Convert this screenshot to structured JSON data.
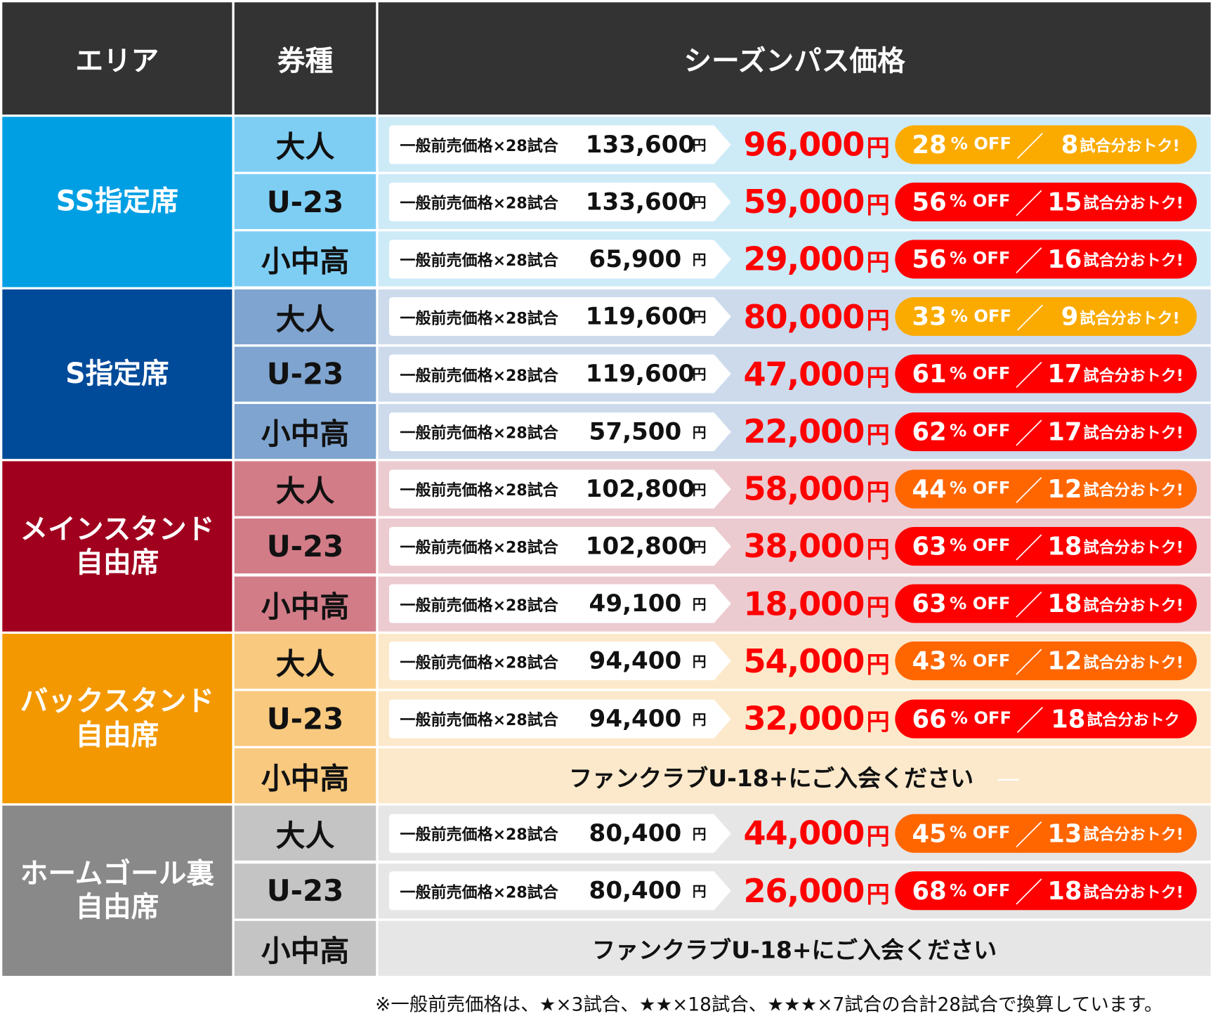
{
  "header": {
    "area": "エリア",
    "type": "券種",
    "price": "シーズンパス価格"
  },
  "labels": {
    "general": "一般前売価格×28試合",
    "yen": "円",
    "off": "% OFF",
    "slash": "／",
    "games_suffix": "試合分おトク!",
    "games_suffix_no_excl": "試合分おトク",
    "dash": "—"
  },
  "colors": {
    "yellow": "#fbab00",
    "red": "#ff0000",
    "orange": "#ff6600"
  },
  "areas": [
    {
      "name": "SS指定席",
      "color": "#009fe3",
      "type_color": "#7ecef4",
      "bg": "#cdeaf7",
      "rows": [
        {
          "type": "大人",
          "general": "133,600",
          "sale": "96,000",
          "pct": "28",
          "games": "8",
          "badge": "yellow"
        },
        {
          "type": "U-23",
          "general": "133,600",
          "sale": "59,000",
          "pct": "56",
          "games": "15",
          "badge": "red"
        },
        {
          "type": "小中高",
          "general": "65,900",
          "sale": "29,000",
          "pct": "56",
          "games": "16",
          "badge": "red"
        }
      ]
    },
    {
      "name": "S指定席",
      "color": "#004a9a",
      "type_color": "#7fa4cf",
      "bg": "#ccdaec",
      "rows": [
        {
          "type": "大人",
          "general": "119,600",
          "sale": "80,000",
          "pct": "33",
          "games": "9",
          "badge": "yellow"
        },
        {
          "type": "U-23",
          "general": "119,600",
          "sale": "47,000",
          "pct": "61",
          "games": "17",
          "badge": "red"
        },
        {
          "type": "小中高",
          "general": "57,500",
          "sale": "22,000",
          "pct": "62",
          "games": "17",
          "badge": "red"
        }
      ]
    },
    {
      "name": "メインスタンド\n自由席",
      "color": "#a0001e",
      "type_color": "#d27c88",
      "bg": "#eccbd0",
      "rows": [
        {
          "type": "大人",
          "general": "102,800",
          "sale": "58,000",
          "pct": "44",
          "games": "12",
          "badge": "orange"
        },
        {
          "type": "U-23",
          "general": "102,800",
          "sale": "38,000",
          "pct": "63",
          "games": "18",
          "badge": "red"
        },
        {
          "type": "小中高",
          "general": "49,100",
          "sale": "18,000",
          "pct": "63",
          "games": "18",
          "badge": "red"
        }
      ]
    },
    {
      "name": "バックスタンド\n自由席",
      "color": "#f39800",
      "type_color": "#f8c97f",
      "bg": "#fce9cb",
      "rows": [
        {
          "type": "大人",
          "general": "94,400",
          "sale": "54,000",
          "pct": "43",
          "games": "12",
          "badge": "orange"
        },
        {
          "type": "U-23",
          "general": "94,400",
          "sale": "32,000",
          "pct": "66",
          "games": "18",
          "badge": "red",
          "noexcl": true
        },
        {
          "type": "小中高",
          "message": "ファンクラブU-18+にご入会ください",
          "dash": true
        }
      ]
    },
    {
      "name": "ホームゴール裏\n自由席",
      "color": "#898989",
      "type_color": "#c4c4c4",
      "bg": "#e6e6e6",
      "rows": [
        {
          "type": "大人",
          "general": "80,400",
          "sale": "44,000",
          "pct": "45",
          "games": "13",
          "badge": "orange"
        },
        {
          "type": "U-23",
          "general": "80,400",
          "sale": "26,000",
          "pct": "68",
          "games": "18",
          "badge": "red"
        },
        {
          "type": "小中高",
          "message": "ファンクラブU-18+にご入会ください"
        }
      ]
    }
  ],
  "footnote": "※一般前売価格は、★×3試合、★★×18試合、★★★×7試合の合計28試合で換算しています。"
}
